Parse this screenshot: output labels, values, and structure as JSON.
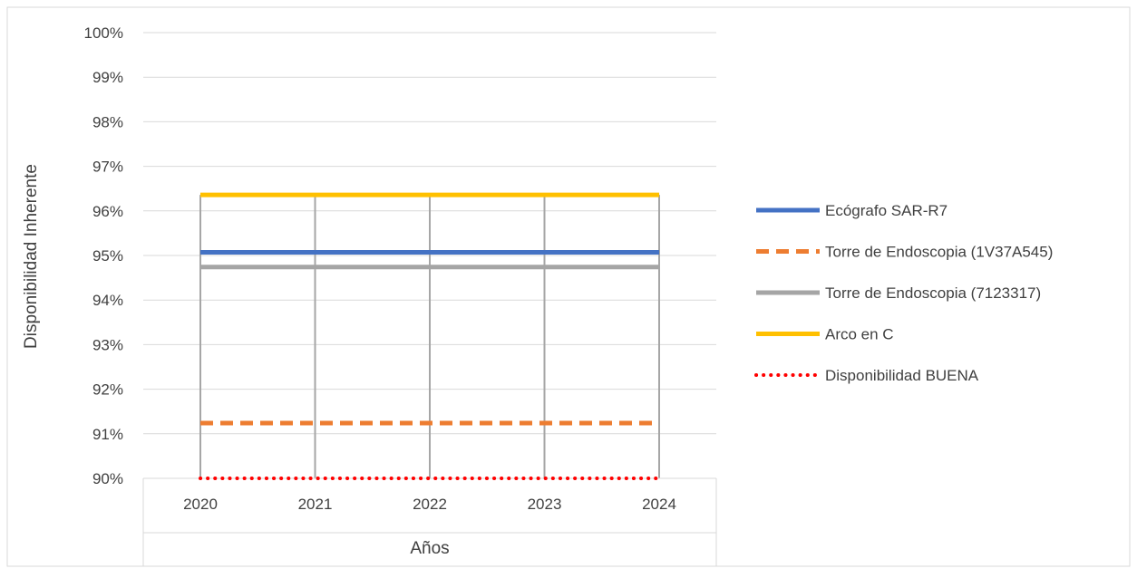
{
  "chart_data": {
    "type": "line",
    "title": "",
    "xlabel": "Años",
    "ylabel": "Disponibilidad Inherente",
    "categories": [
      "2020",
      "2021",
      "2022",
      "2023",
      "2024"
    ],
    "ylim": [
      0.9,
      1.0
    ],
    "yticks": [
      0.9,
      0.91,
      0.92,
      0.93,
      0.94,
      0.95,
      0.96,
      0.97,
      0.98,
      0.99,
      1.0
    ],
    "ytick_labels": [
      "90%",
      "91%",
      "92%",
      "93%",
      "94%",
      "95%",
      "96%",
      "97%",
      "98%",
      "99%",
      "100%"
    ],
    "grid": {
      "horizontal": true,
      "vertical": true
    },
    "legend_position": "right",
    "series": [
      {
        "name": "Ecógrafo SAR-R7",
        "values": [
          0.9507,
          0.9507,
          0.9507,
          0.9507,
          0.9507
        ],
        "color": "#4472C4",
        "style": "solid"
      },
      {
        "name": "Torre de Endoscopia (1V37A545)",
        "values": [
          0.9124,
          0.9124,
          0.9124,
          0.9124,
          0.9124
        ],
        "color": "#ED7D31",
        "style": "dashed"
      },
      {
        "name": "Torre de Endoscopia (7123317)",
        "values": [
          0.9474,
          0.9474,
          0.9474,
          0.9474,
          0.9474
        ],
        "color": "#A5A5A5",
        "style": "solid"
      },
      {
        "name": "Arco en C",
        "values": [
          0.9636,
          0.9636,
          0.9636,
          0.9636,
          0.9636
        ],
        "color": "#FFC000",
        "style": "solid"
      },
      {
        "name": "Disponibilidad BUENA",
        "values": [
          0.9,
          0.9,
          0.9,
          0.9,
          0.9
        ],
        "color": "#FF0000",
        "style": "dotted"
      }
    ]
  }
}
